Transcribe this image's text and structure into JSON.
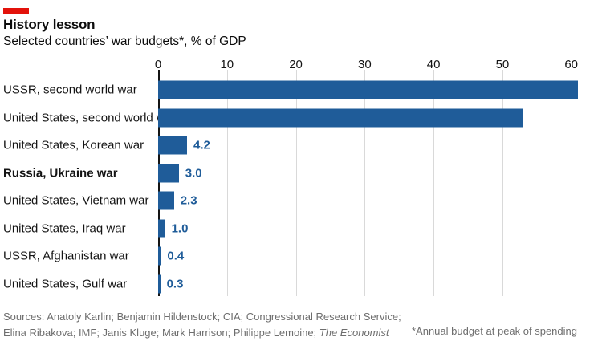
{
  "brand": {
    "accent_red": "#e3120b"
  },
  "header": {
    "title": "History lesson",
    "subtitle": "Selected countries’ war budgets*, % of GDP"
  },
  "chart_data": {
    "type": "bar",
    "orientation": "horizontal",
    "title": "History lesson",
    "subtitle": "Selected countries’ war budgets*, % of GDP",
    "xlabel": "% of GDP",
    "xlim": [
      0,
      60
    ],
    "xticks": [
      0,
      10,
      20,
      30,
      40,
      50,
      60
    ],
    "grid": "vertical-light",
    "legend": "none",
    "categories": [
      "USSR, second world war",
      "United States, second world war",
      "United States, Korean war",
      "Russia, Ukraine war",
      "United States, Vietnam war",
      "United States, Iraq war",
      "USSR, Afghanistan war",
      "United States, Gulf war"
    ],
    "values": [
      61,
      53,
      4.2,
      3.0,
      2.3,
      1.0,
      0.4,
      0.3
    ],
    "value_labels": [
      "",
      "",
      "4.2",
      "3.0",
      "2.3",
      "1.0",
      "0.4",
      "0.3"
    ],
    "bold_category_index": 3,
    "bar_color": "#1f5c99",
    "value_label_color": "#1f5c99",
    "axis_line_color": "#141414",
    "gridline_color": "#d9d9d9"
  },
  "footer": {
    "sources_line1": "Sources: Anatoly Karlin; Benjamin Hildenstock; CIA; Congressional Research Service;",
    "sources_line2": "Elina Ribakova; IMF; Janis Kluge; Mark Harrison; Philippe Lemoine; ",
    "sources_line2_italic": "The Economist",
    "footnote": "*Annual budget at peak of spending"
  }
}
